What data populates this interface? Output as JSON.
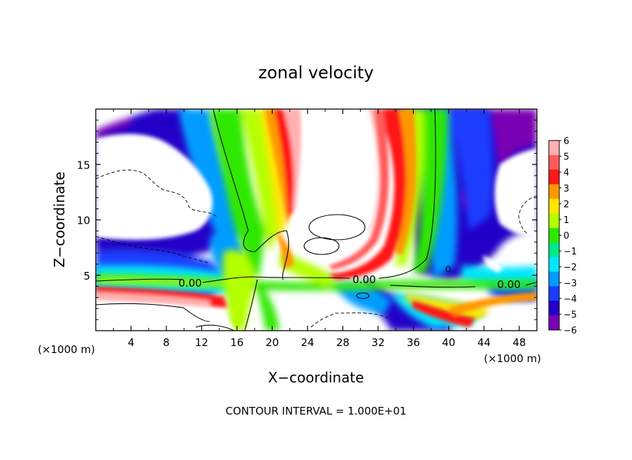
{
  "chart_data": {
    "type": "heatmap",
    "title": "zonal velocity",
    "xlabel": "X−coordinate",
    "ylabel": "Z−coordinate",
    "x_unit_label_left": "(×1000 m)",
    "x_unit_label_right": "(×1000 m)",
    "footer": "CONTOUR INTERVAL = 1.000E+01",
    "xlim": [
      0,
      50
    ],
    "ylim": [
      0,
      20
    ],
    "xticks": [
      4,
      8,
      12,
      16,
      20,
      24,
      28,
      32,
      36,
      40,
      44,
      48
    ],
    "yticks": [
      5,
      10,
      15
    ],
    "contour_labels": [
      "0.00",
      "0.00",
      "0.00"
    ],
    "colorbar": {
      "levels": [
        6,
        5,
        4,
        3,
        2,
        1,
        0,
        -1,
        -2,
        -3,
        -4,
        -5,
        -6
      ],
      "tick_labels": [
        "6",
        "5",
        "4",
        "3",
        "2",
        "1",
        "0",
        "−1",
        "−2",
        "−3",
        "−4",
        "−5",
        "−6"
      ],
      "colors": [
        "#ffb0b0",
        "#ff5a5a",
        "#ff1818",
        "#ff9800",
        "#ffe600",
        "#b4ff00",
        "#2fe800",
        "#00e88a",
        "#00e6ff",
        "#009cff",
        "#1a3cff",
        "#2400c8",
        "#7a00b4"
      ]
    }
  }
}
